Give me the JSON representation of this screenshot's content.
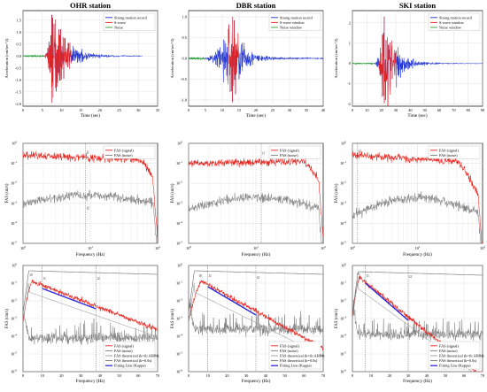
{
  "colors": {
    "signal": "#e8231d",
    "noise": "#7a7a7a",
    "strong_motion": "#1b2fd6",
    "noise_window": "#2e9e3a",
    "fit": "#2a2ad8",
    "theory": "#6b6b6b",
    "grid": "#d9d9d9"
  },
  "chart_data": [
    {
      "type": "line",
      "station": "OHR station",
      "title": "OHR station",
      "xlabel": "Time (sec)",
      "ylabel": "Acceleration (cm/sec^2)",
      "xlim": [
        0,
        35
      ],
      "ylim": [
        -2.1,
        1.9
      ],
      "xticks": [
        "0",
        "5",
        "10",
        "15",
        "20",
        "25",
        "30",
        "35"
      ],
      "yticks": [
        "-2.0",
        "-1.5",
        "-1.0",
        "-0.5",
        "0.0",
        "0.5",
        "1.0",
        "1.5"
      ],
      "legend": [
        "Strong motion record",
        "S-wave",
        "Noise"
      ],
      "legend_position": "top-right",
      "waveform": {
        "noise_end": 5.5,
        "s_start": 5.5,
        "s_end": 12.5,
        "peak_time": 7.5,
        "peak_pos": 1.72,
        "peak_neg": -1.95,
        "decay": 3.5,
        "record_end": 31
      }
    },
    {
      "type": "line",
      "station": "DBR station",
      "title": "DBR station",
      "xlabel": "Time (sec)",
      "ylabel": "Acceleration (cm/sec^2)",
      "xlim": [
        0,
        40
      ],
      "ylim": [
        -1.15,
        1.15
      ],
      "xticks": [
        "0",
        "5",
        "10",
        "15",
        "20",
        "25",
        "30",
        "35",
        "40"
      ],
      "yticks": [
        "-1.0",
        "-0.5",
        "0.0",
        "0.5",
        "1.0"
      ],
      "legend": [
        "Strong motion record",
        "S-wave window",
        "Noise window"
      ],
      "legend_position": "top-right",
      "waveform": {
        "noise_end": 5,
        "s_start": 11.5,
        "s_end": 15,
        "peak_time": 13,
        "peak_pos": 1.0,
        "peak_neg": -1.05,
        "decay": 3,
        "record_end": 40
      }
    },
    {
      "type": "line",
      "station": "SKI station",
      "title": "SKI station",
      "xlabel": "Time (sec)",
      "ylabel": "Acceleration (cm/sec^2)",
      "xlim": [
        0,
        90
      ],
      "ylim": [
        -2.1,
        2.6
      ],
      "xticks": [
        "0",
        "10",
        "20",
        "30",
        "40",
        "50",
        "60",
        "70",
        "80",
        "90"
      ],
      "yticks": [
        "-2",
        "-1",
        "0",
        "1",
        "2"
      ],
      "legend": [
        "Strong motion record",
        "S-wave window",
        "Noise window"
      ],
      "legend_position": "top-right",
      "waveform": {
        "noise_end": 15,
        "s_start": 18,
        "s_end": 30,
        "peak_time": 22,
        "peak_pos": 2.3,
        "peak_neg": -1.95,
        "decay": 8,
        "record_end": 90
      }
    },
    {
      "type": "line",
      "station": "OHR station",
      "log_x": true,
      "log_y": true,
      "xlabel": "Frequency (Hz)",
      "ylabel": "FAS (cm/s)",
      "xlim": [
        1,
        100
      ],
      "ylim_exp": [
        -5,
        0
      ],
      "x_tick_exps": [
        0,
        1,
        2
      ],
      "y_tick_exps": [
        -5,
        -4,
        -3,
        -2,
        -1,
        0
      ],
      "legend": [
        "FAS (signal)",
        "FAS (noise)"
      ],
      "legend_position": "top-right",
      "markers": [
        {
          "label": "f1",
          "x": 8.5,
          "exp": -0.5
        },
        {
          "label": "f2",
          "x": 8.5,
          "exp": -3.3
        }
      ],
      "vline": 8.5,
      "spectrum": {
        "sig_start": -0.6,
        "sig_mid": -0.8,
        "sig_end": -2.3,
        "noise_start": -3.0,
        "noise_mid": -2.6,
        "noise_end": -3.2,
        "knee": 55
      }
    },
    {
      "type": "line",
      "station": "DBR station",
      "log_x": true,
      "log_y": true,
      "xlabel": "Frequency (Hz)",
      "ylabel": "FAS (cm/s)",
      "xlim": [
        1,
        100
      ],
      "ylim_exp": [
        -5,
        0
      ],
      "x_tick_exps": [
        0,
        1,
        2
      ],
      "y_tick_exps": [
        -5,
        -4,
        -3,
        -2,
        -1,
        0
      ],
      "legend": [
        "FAS (signal)",
        "FAS (noise)"
      ],
      "legend_position": "top-right",
      "markers": [
        {
          "label": "f1",
          "x": 12,
          "exp": -0.55
        }
      ],
      "vline": 12,
      "spectrum": {
        "sig_start": -1.0,
        "sig_mid": -0.9,
        "sig_end": -2.2,
        "noise_start": -3.3,
        "noise_mid": -2.7,
        "noise_end": -3.2,
        "knee": 50
      }
    },
    {
      "type": "line",
      "station": "SKI station",
      "log_x": true,
      "log_y": true,
      "xlabel": "Frequency (Hz)",
      "ylabel": "FAS (cm/s)",
      "xlim": [
        1,
        100
      ],
      "ylim_exp": [
        -5,
        0
      ],
      "x_tick_exps": [
        0,
        1,
        2
      ],
      "y_tick_exps": [
        -5,
        -4,
        -3,
        -2,
        -1,
        0
      ],
      "legend": [
        "FAS (signal)",
        "FAS (noise)"
      ],
      "legend_position": "top-right",
      "markers": [
        {
          "label": "f1",
          "x": 1.2,
          "exp": -0.45
        }
      ],
      "vline": 1.2,
      "spectrum": {
        "sig_start": -0.6,
        "sig_mid": -0.9,
        "sig_end": -3.0,
        "noise_start": -3.6,
        "noise_mid": -2.7,
        "noise_end": -3.6,
        "knee": 40
      }
    },
    {
      "type": "line",
      "station": "OHR station",
      "log_y": true,
      "xlabel": "Frequency (Hz)",
      "ylabel": "FAS (cm/s)",
      "xlim": [
        0,
        70
      ],
      "ylim_exp": [
        -6,
        0
      ],
      "xticks": [
        "0",
        "10",
        "20",
        "30",
        "40",
        "50",
        "60",
        "70"
      ],
      "y_tick_exps": [
        -6,
        -5,
        -4,
        -3,
        -2,
        -1,
        0
      ],
      "legend": [
        "FAS (signal)",
        "FAS (noise)",
        "FAS theoretical (k=fit AH84)",
        "FAS theoretical (k=0.0s)",
        "Fitting Line (Kappa)"
      ],
      "legend_position": "bottom-right",
      "markers": [
        {
          "label": "f0",
          "x": 3,
          "exp": -0.6
        },
        {
          "label": "f1",
          "x": 10,
          "exp": -0.8
        },
        {
          "label": "f2",
          "x": 38,
          "exp": -0.8
        }
      ],
      "vlines": [
        10,
        38
      ],
      "fit": {
        "x1": 10,
        "e1": -1.3,
        "x2": 38,
        "e2": -2.45
      },
      "spectrum": {
        "peak_f": 5,
        "peak_e": -0.9,
        "slope": -0.042,
        "noise_e": -4.1,
        "theory0_e": -0.3
      }
    },
    {
      "type": "line",
      "station": "DBR station",
      "log_y": true,
      "xlabel": "Frequency (Hz)",
      "ylabel": "FAS (cm/s)",
      "xlim": [
        0,
        70
      ],
      "ylim_exp": [
        -6,
        0
      ],
      "xticks": [
        "0",
        "10",
        "20",
        "30",
        "40",
        "50",
        "60",
        "70"
      ],
      "y_tick_exps": [
        -6,
        -5,
        -4,
        -3,
        -2,
        -1,
        0
      ],
      "legend": [
        "FAS (signal)",
        "FAS (noise)",
        "FAS theoretical (k=fit AH84)",
        "FAS theoretical (k=0.0s)",
        "Fitting Line (Kappa)"
      ],
      "legend_position": "bottom-right",
      "markers": [
        {
          "label": "f0",
          "x": 5,
          "exp": -0.65
        },
        {
          "label": "f1",
          "x": 10,
          "exp": -0.65
        },
        {
          "label": "f2",
          "x": 35,
          "exp": -0.75
        }
      ],
      "vlines": [
        10,
        35
      ],
      "fit": {
        "x1": 10,
        "e1": -1.2,
        "x2": 35,
        "e2": -2.8
      },
      "spectrum": {
        "peak_f": 7,
        "peak_e": -0.9,
        "slope": -0.06,
        "noise_e": -3.6,
        "theory0_e": -0.3
      }
    },
    {
      "type": "line",
      "station": "SKI station",
      "log_y": true,
      "xlabel": "Frequency (Hz)",
      "ylabel": "FAS (cm/s)",
      "xlim": [
        0,
        70
      ],
      "ylim_exp": [
        -6,
        0
      ],
      "xticks": [
        "0",
        "10",
        "20",
        "30",
        "40",
        "50",
        "60",
        "70"
      ],
      "y_tick_exps": [
        -6,
        -5,
        -4,
        -3,
        -2,
        -1,
        0
      ],
      "legend": [
        "FAS (signal)",
        "FAS (noise)",
        "FAS theoretical (k=fit AH84)",
        "FAS theoretical (k=0.0s)",
        "Fitting Line (Kappa)"
      ],
      "legend_position": "bottom-right",
      "markers": [
        {
          "label": "f0",
          "x": 2,
          "exp": -0.55
        },
        {
          "label": "f1",
          "x": 7,
          "exp": -0.65
        },
        {
          "label": "f2",
          "x": 30,
          "exp": -0.7
        }
      ],
      "vlines": [
        7,
        30
      ],
      "fit": {
        "x1": 7,
        "e1": -1.0,
        "x2": 30,
        "e2": -3.1
      },
      "spectrum": {
        "peak_f": 4,
        "peak_e": -0.7,
        "slope": -0.085,
        "noise_e": -3.9,
        "theory0_e": -0.35
      }
    }
  ]
}
